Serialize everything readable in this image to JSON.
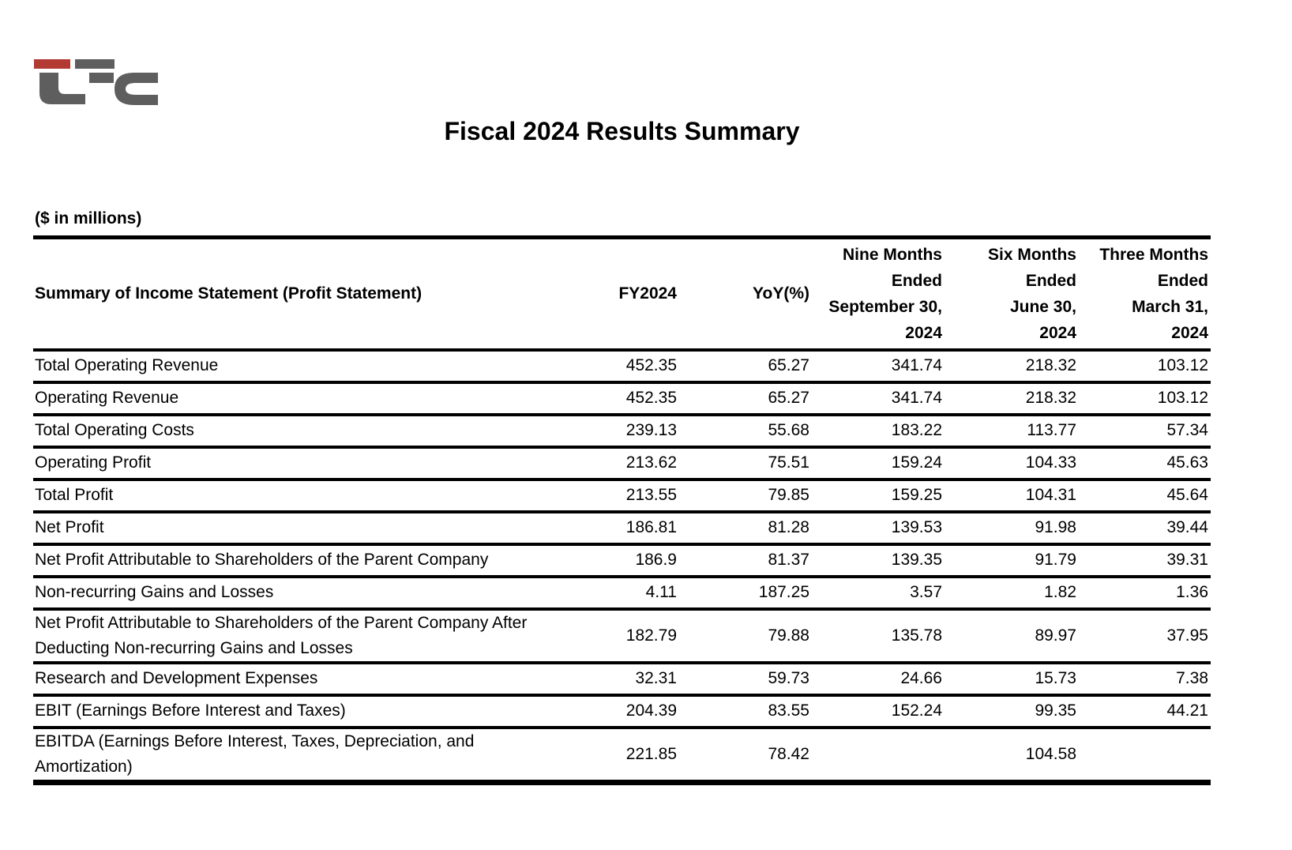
{
  "logo": {
    "name": "LFC",
    "red": "#b23a33",
    "gray": "#5e5e5e"
  },
  "title": "Fiscal 2024 Results Summary",
  "units_note": "($ in millions)",
  "table": {
    "label_header": "Summary of Income Statement (Profit Statement)",
    "columns": [
      {
        "lines": [
          "FY2024"
        ]
      },
      {
        "lines": [
          "YoY(%)"
        ]
      },
      {
        "lines": [
          "Nine Months",
          "Ended",
          "September 30,",
          "2024"
        ]
      },
      {
        "lines": [
          "Six Months",
          "Ended",
          "June 30,",
          "2024"
        ]
      },
      {
        "lines": [
          "Three Months",
          "Ended",
          "March 31,",
          "2024"
        ]
      }
    ],
    "rows": [
      {
        "label": "Total Operating Revenue",
        "tall": false,
        "values": [
          "452.35",
          "65.27",
          "341.74",
          "218.32",
          "103.12"
        ]
      },
      {
        "label": "Operating Revenue",
        "tall": false,
        "values": [
          "452.35",
          "65.27",
          "341.74",
          "218.32",
          "103.12"
        ]
      },
      {
        "label": "Total Operating Costs",
        "tall": false,
        "values": [
          "239.13",
          "55.68",
          "183.22",
          "113.77",
          "57.34"
        ]
      },
      {
        "label": "Operating Profit",
        "tall": false,
        "values": [
          "213.62",
          "75.51",
          "159.24",
          "104.33",
          "45.63"
        ]
      },
      {
        "label": "Total Profit",
        "tall": false,
        "values": [
          "213.55",
          "79.85",
          "159.25",
          "104.31",
          "45.64"
        ]
      },
      {
        "label": "Net Profit",
        "tall": false,
        "values": [
          "186.81",
          "81.28",
          "139.53",
          "91.98",
          "39.44"
        ]
      },
      {
        "label": "Net Profit Attributable to Shareholders of the Parent Company",
        "tall": false,
        "values": [
          "186.9",
          "81.37",
          "139.35",
          "91.79",
          "39.31"
        ]
      },
      {
        "label": "Non-recurring Gains and Losses",
        "tall": false,
        "values": [
          "4.11",
          "187.25",
          "3.57",
          "1.82",
          "1.36"
        ]
      },
      {
        "label": "Net Profit Attributable to Shareholders of the Parent Company After Deducting Non-recurring Gains and Losses",
        "tall": true,
        "values": [
          "182.79",
          "79.88",
          "135.78",
          "89.97",
          "37.95"
        ]
      },
      {
        "label": "Research and Development Expenses",
        "tall": false,
        "values": [
          "32.31",
          "59.73",
          "24.66",
          "15.73",
          "7.38"
        ]
      },
      {
        "label": "EBIT (Earnings Before Interest and Taxes)",
        "tall": false,
        "values": [
          "204.39",
          "83.55",
          "152.24",
          "99.35",
          "44.21"
        ]
      },
      {
        "label": "EBITDA (Earnings Before Interest, Taxes, Depreciation, and Amortization)",
        "tall": true,
        "values": [
          "221.85",
          "78.42",
          "",
          "104.58",
          ""
        ]
      }
    ]
  }
}
